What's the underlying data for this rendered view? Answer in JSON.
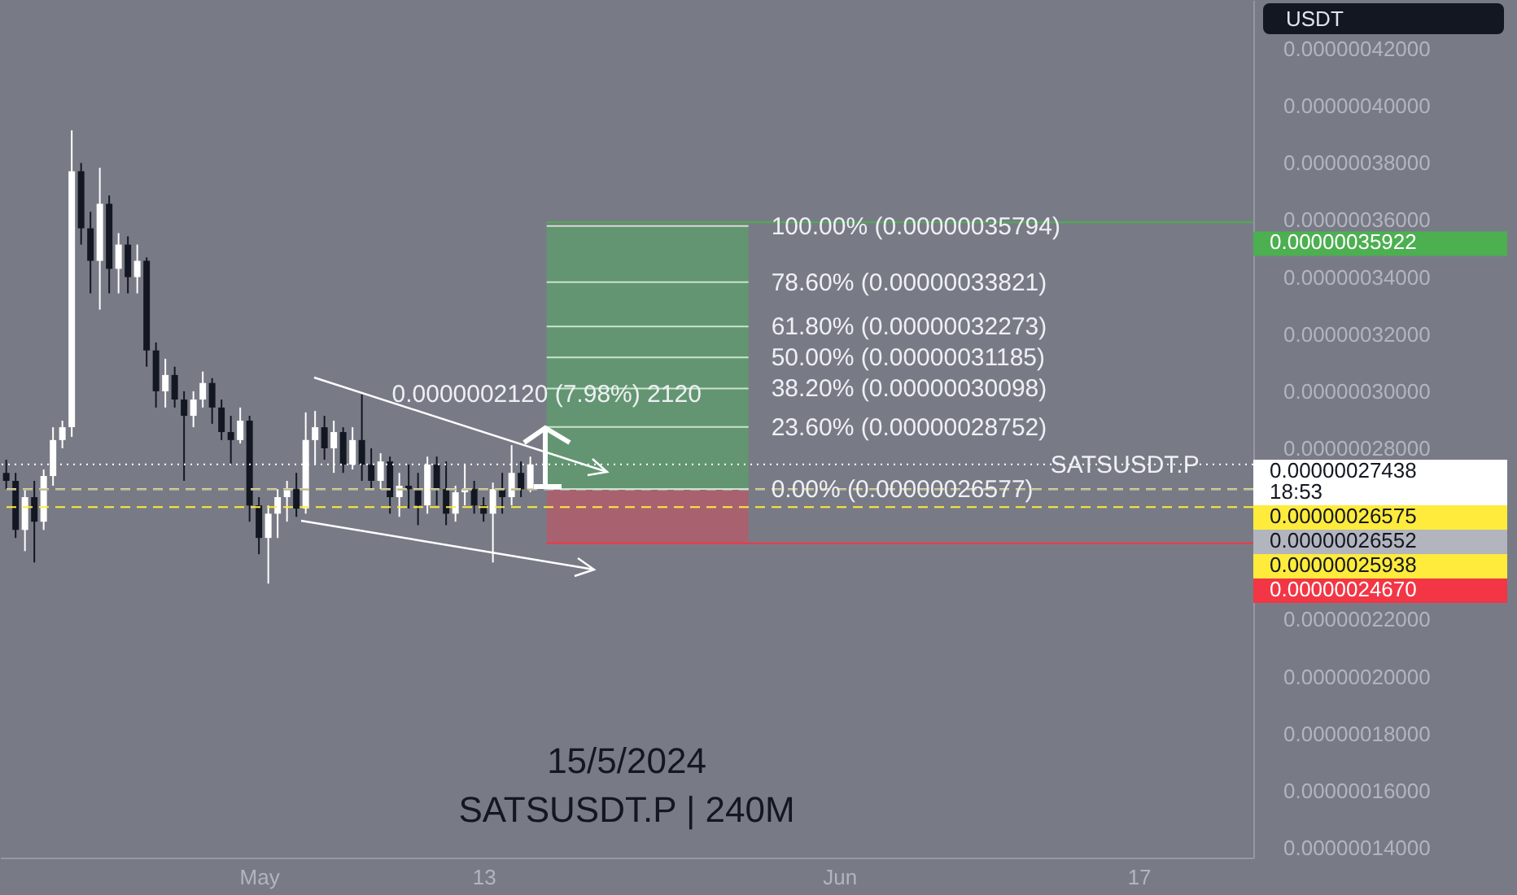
{
  "chart_data": {
    "type": "candlestick",
    "title": "15/5/2024",
    "subtitle": "SATSUSDT.P | 240M",
    "x": [
      "2024-04-17T12:00",
      "2024-04-18T00:00",
      "2024-04-18T12:00",
      "2024-04-19T00:00",
      "2024-04-19T12:00",
      "2024-04-20T00:00",
      "2024-04-20T12:00",
      "2024-04-21T00:00",
      "2024-04-21T12:00",
      "2024-04-22T00:00",
      "2024-04-22T12:00",
      "2024-04-23T00:00",
      "2024-04-23T12:00",
      "2024-04-24T00:00",
      "2024-04-24T12:00",
      "2024-04-25T00:00",
      "2024-04-25T12:00",
      "2024-04-26T00:00",
      "2024-04-26T12:00",
      "2024-04-27T00:00",
      "2024-04-27T12:00",
      "2024-04-28T00:00",
      "2024-04-28T12:00",
      "2024-04-29T00:00",
      "2024-04-29T12:00",
      "2024-04-30T00:00",
      "2024-04-30T12:00",
      "2024-05-01T00:00",
      "2024-05-01T12:00",
      "2024-05-02T00:00",
      "2024-05-02T12:00",
      "2024-05-03T00:00",
      "2024-05-03T12:00",
      "2024-05-04T00:00",
      "2024-05-04T12:00",
      "2024-05-05T00:00",
      "2024-05-05T12:00",
      "2024-05-06T00:00",
      "2024-05-06T12:00",
      "2024-05-07T00:00",
      "2024-05-07T12:00",
      "2024-05-08T00:00",
      "2024-05-08T12:00",
      "2024-05-09T00:00",
      "2024-05-09T12:00",
      "2024-05-10T00:00",
      "2024-05-10T12:00",
      "2024-05-11T00:00",
      "2024-05-11T12:00",
      "2024-05-12T00:00",
      "2024-05-12T12:00",
      "2024-05-13T00:00",
      "2024-05-13T12:00",
      "2024-05-14T00:00",
      "2024-05-14T12:00",
      "2024-05-15T00:00",
      "2024-05-15T12:00"
    ],
    "ohlc": [
      [
        2.714e-07,
        2.76e-07,
        2.657e-07,
        2.686e-07
      ],
      [
        2.686e-07,
        2.714e-07,
        2.486e-07,
        2.514e-07
      ],
      [
        2.514e-07,
        2.657e-07,
        2.44e-07,
        2.629e-07
      ],
      [
        2.629e-07,
        2.686e-07,
        2.4e-07,
        2.543e-07
      ],
      [
        2.543e-07,
        2.726e-07,
        2.514e-07,
        2.703e-07
      ],
      [
        2.703e-07,
        2.874e-07,
        2.669e-07,
        2.829e-07
      ],
      [
        2.829e-07,
        2.897e-07,
        2.8e-07,
        2.874e-07
      ],
      [
        2.874e-07,
        3.914e-07,
        2.84e-07,
        3.771e-07
      ],
      [
        3.771e-07,
        3.8e-07,
        3.514e-07,
        3.571e-07
      ],
      [
        3.571e-07,
        3.629e-07,
        3.343e-07,
        3.457e-07
      ],
      [
        3.457e-07,
        3.783e-07,
        3.286e-07,
        3.657e-07
      ],
      [
        3.657e-07,
        3.686e-07,
        3.343e-07,
        3.429e-07
      ],
      [
        3.429e-07,
        3.554e-07,
        3.343e-07,
        3.514e-07
      ],
      [
        3.514e-07,
        3.543e-07,
        3.343e-07,
        3.4e-07
      ],
      [
        3.4e-07,
        3.514e-07,
        3.343e-07,
        3.457e-07
      ],
      [
        3.457e-07,
        3.469e-07,
        3.086e-07,
        3.143e-07
      ],
      [
        3.143e-07,
        3.171e-07,
        2.943e-07,
        3e-07
      ],
      [
        3e-07,
        3.114e-07,
        2.943e-07,
        3.057e-07
      ],
      [
        3.057e-07,
        3.086e-07,
        2.943e-07,
        2.971e-07
      ],
      [
        2.971e-07,
        3e-07,
        2.686e-07,
        2.914e-07
      ],
      [
        2.914e-07,
        3e-07,
        2.874e-07,
        2.971e-07
      ],
      [
        2.971e-07,
        3.069e-07,
        2.943e-07,
        3.029e-07
      ],
      [
        3.029e-07,
        3.046e-07,
        2.886e-07,
        2.943e-07
      ],
      [
        2.943e-07,
        2.971e-07,
        2.829e-07,
        2.857e-07
      ],
      [
        2.857e-07,
        2.914e-07,
        2.743e-07,
        2.829e-07
      ],
      [
        2.829e-07,
        2.943e-07,
        2.817e-07,
        2.897e-07
      ],
      [
        2.897e-07,
        2.914e-07,
        2.543e-07,
        2.6e-07
      ],
      [
        2.6e-07,
        2.629e-07,
        2.429e-07,
        2.486e-07
      ],
      [
        2.486e-07,
        2.6e-07,
        2.326e-07,
        2.571e-07
      ],
      [
        2.571e-07,
        2.657e-07,
        2.486e-07,
        2.629e-07
      ],
      [
        2.629e-07,
        2.686e-07,
        2.543e-07,
        2.657e-07
      ],
      [
        2.657e-07,
        2.714e-07,
        2.56e-07,
        2.589e-07
      ],
      [
        2.589e-07,
        2.926e-07,
        2.571e-07,
        2.829e-07
      ],
      [
        2.829e-07,
        2.931e-07,
        2.743e-07,
        2.874e-07
      ],
      [
        2.874e-07,
        2.914e-07,
        2.76e-07,
        2.8e-07
      ],
      [
        2.8e-07,
        2.897e-07,
        2.714e-07,
        2.857e-07
      ],
      [
        2.857e-07,
        2.874e-07,
        2.714e-07,
        2.743e-07
      ],
      [
        2.743e-07,
        2.874e-07,
        2.726e-07,
        2.829e-07
      ],
      [
        2.829e-07,
        2.989e-07,
        2.686e-07,
        2.743e-07
      ],
      [
        2.743e-07,
        2.8e-07,
        2.657e-07,
        2.686e-07
      ],
      [
        2.686e-07,
        2.783e-07,
        2.657e-07,
        2.754e-07
      ],
      [
        2.754e-07,
        2.771e-07,
        2.571e-07,
        2.629e-07
      ],
      [
        2.629e-07,
        2.714e-07,
        2.56e-07,
        2.669e-07
      ],
      [
        2.669e-07,
        2.743e-07,
        2.589e-07,
        2.657e-07
      ],
      [
        2.657e-07,
        2.714e-07,
        2.531e-07,
        2.6e-07
      ],
      [
        2.6e-07,
        2.771e-07,
        2.571e-07,
        2.743e-07
      ],
      [
        2.743e-07,
        2.771e-07,
        2.6e-07,
        2.657e-07
      ],
      [
        2.657e-07,
        2.754e-07,
        2.531e-07,
        2.571e-07
      ],
      [
        2.571e-07,
        2.669e-07,
        2.543e-07,
        2.646e-07
      ],
      [
        2.646e-07,
        2.743e-07,
        2.6e-07,
        2.657e-07
      ],
      [
        2.657e-07,
        2.686e-07,
        2.571e-07,
        2.6e-07
      ],
      [
        2.6e-07,
        2.629e-07,
        2.543e-07,
        2.571e-07
      ],
      [
        2.571e-07,
        2.68e-07,
        2.4e-07,
        2.657e-07
      ],
      [
        2.657e-07,
        2.714e-07,
        2.571e-07,
        2.629e-07
      ],
      [
        2.629e-07,
        2.811e-07,
        2.6e-07,
        2.714e-07
      ],
      [
        2.714e-07,
        2.754e-07,
        2.629e-07,
        2.657e-07
      ],
      [
        2.657e-07,
        2.771e-07,
        2.646e-07,
        2.7438e-07
      ]
    ],
    "colors": [
      "#131722",
      "#131722",
      "#ffffff",
      "#131722",
      "#ffffff",
      "#ffffff",
      "#ffffff",
      "#ffffff",
      "#131722",
      "#131722",
      "#ffffff",
      "#131722",
      "#ffffff",
      "#131722",
      "#ffffff",
      "#131722",
      "#131722",
      "#ffffff",
      "#131722",
      "#131722",
      "#ffffff",
      "#ffffff",
      "#131722",
      "#131722",
      "#131722",
      "#ffffff",
      "#131722",
      "#131722",
      "#ffffff",
      "#ffffff",
      "#ffffff",
      "#131722",
      "#ffffff",
      "#ffffff",
      "#131722",
      "#ffffff",
      "#131722",
      "#ffffff",
      "#131722",
      "#131722",
      "#ffffff",
      "#131722",
      "#ffffff",
      "#131722",
      "#131722",
      "#ffffff",
      "#131722",
      "#131722",
      "#ffffff",
      "#ffffff",
      "#131722",
      "#131722",
      "#ffffff",
      "#131722",
      "#ffffff",
      "#131722",
      "#ffffff"
    ],
    "xlim": [
      "2024-04-17T04:00",
      "2024-06-23T03:00"
    ],
    "xticks": [
      {
        "value": "2024-05-01",
        "label": "May"
      },
      {
        "value": "2024-05-13",
        "label": "13"
      },
      {
        "value": "2024-06-01",
        "label": "Jun"
      },
      {
        "value": "2024-06-17",
        "label": "17"
      }
    ],
    "ylim": [
      1.366e-07,
      4.371e-07
    ],
    "yticks": [
      {
        "value": 1.4e-07,
        "label": "0.00000014000"
      },
      {
        "value": 1.6e-07,
        "label": "0.00000016000"
      },
      {
        "value": 1.8e-07,
        "label": "0.00000018000"
      },
      {
        "value": 2e-07,
        "label": "0.00000020000"
      },
      {
        "value": 2.2e-07,
        "label": "0.00000022000"
      },
      {
        "value": 2.8e-07,
        "label": "0.00000028000"
      },
      {
        "value": 3e-07,
        "label": "0.00000030000"
      },
      {
        "value": 3.2e-07,
        "label": "0.00000032000"
      },
      {
        "value": 3.4e-07,
        "label": "0.00000034000"
      },
      {
        "value": 3.6e-07,
        "label": "0.00000036000"
      },
      {
        "value": 3.8e-07,
        "label": "0.00000038000"
      },
      {
        "value": 4e-07,
        "label": "0.00000040000"
      },
      {
        "value": 4.2e-07,
        "label": "0.00000042000"
      }
    ],
    "bands": [
      {
        "axis": "y",
        "from": 2.6577e-07,
        "to": 3.5794e-07,
        "color": "#5f9a6e"
      },
      {
        "axis": "y",
        "from": 2.467e-07,
        "to": 2.6577e-07,
        "color": "#b05e6b"
      }
    ],
    "ref_lines": [
      {
        "axis": "y",
        "value": 3.5922e-07,
        "label": "0.00000035922",
        "color": "#4caf50"
      },
      {
        "axis": "y",
        "value": 2.7438e-07,
        "label": "0.00000027438\n18:53",
        "color": "#ffffff",
        "line_style": "dotted"
      },
      {
        "axis": "y",
        "value": 2.6575e-07,
        "label": "0.00000026575",
        "color": "#ffeb3b",
        "line_style": "dashed"
      },
      {
        "axis": "y",
        "value": 2.6552e-07,
        "label": "0.00000026552",
        "color": "#b2b5be",
        "line_style": "dashed"
      },
      {
        "axis": "y",
        "value": 2.5938e-07,
        "label": "0.00000025938",
        "color": "#ffeb3b",
        "line_style": "dashed"
      },
      {
        "axis": "y",
        "value": 2.467e-07,
        "label": "0.00000024670",
        "color": "#f23645"
      },
      {
        "axis": "y",
        "value": 3.5794e-07,
        "label": "100.00% (0.00000035794)",
        "color": "#c8e6c9",
        "line_style": "solid"
      },
      {
        "axis": "y",
        "value": 3.3821e-07,
        "label": "78.60% (0.00000033821)",
        "color": "#c8e6c9",
        "line_style": "solid"
      },
      {
        "axis": "y",
        "value": 3.2273e-07,
        "label": "61.80% (0.00000032273)",
        "color": "#c8e6c9",
        "line_style": "solid"
      },
      {
        "axis": "y",
        "value": 3.1185e-07,
        "label": "50.00% (0.00000031185)",
        "color": "#c8e6c9",
        "line_style": "solid"
      },
      {
        "axis": "y",
        "value": 3.0098e-07,
        "label": "38.20% (0.00000030098)",
        "color": "#c8e6c9",
        "line_style": "solid"
      },
      {
        "axis": "y",
        "value": 2.8752e-07,
        "label": "23.60% (0.00000028752)",
        "color": "#c8e6c9",
        "line_style": "solid"
      },
      {
        "axis": "y",
        "value": 2.6577e-07,
        "label": "0.00% (0.00000026577)",
        "color": "#c8e6c9",
        "line_style": "solid"
      }
    ],
    "annotations": [
      "USDT",
      "0.0000002120 (7.98%) 2120",
      {
        "text": "SATSUSDT.P",
        "x": "2024-06-12T07:00",
        "y": 2.7438e-07
      }
    ],
    "grid": false
  }
}
